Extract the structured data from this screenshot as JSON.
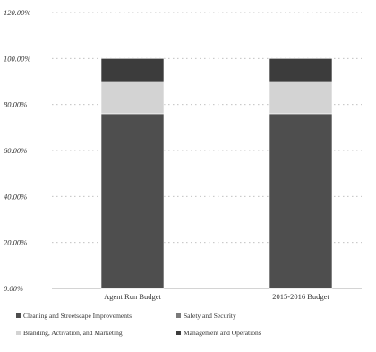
{
  "chart_data": {
    "type": "bar",
    "stacked": true,
    "categories": [
      "Agent Run Budget",
      "2015-2016 Budget"
    ],
    "series": [
      {
        "name": "Cleaning and Streetscape Improvements",
        "values": [
          0.76,
          0.76
        ],
        "color": "#4e4e4e"
      },
      {
        "name": "Safety and Security",
        "values": [
          0.0,
          0.0
        ],
        "color": "#7a7a7a"
      },
      {
        "name": "Branding, Activation, and Marketing",
        "values": [
          0.14,
          0.14
        ],
        "color": "#d3d3d3"
      },
      {
        "name": "Management and Operations",
        "values": [
          0.1,
          0.1
        ],
        "color": "#3c3c3c"
      }
    ],
    "yticks": [
      "0.00%",
      "20.00%",
      "40.00%",
      "60.00%",
      "80.00%",
      "100.00%",
      "120.00%"
    ],
    "ylim": [
      0,
      1.2
    ],
    "xlabel": "",
    "ylabel": "",
    "grid": true,
    "legend_position": "bottom"
  },
  "legend": {
    "items": [
      "Cleaning and Streetscape Improvements",
      "Safety and Security",
      "Branding, Activation, and Marketing",
      "Management and Operations"
    ]
  }
}
